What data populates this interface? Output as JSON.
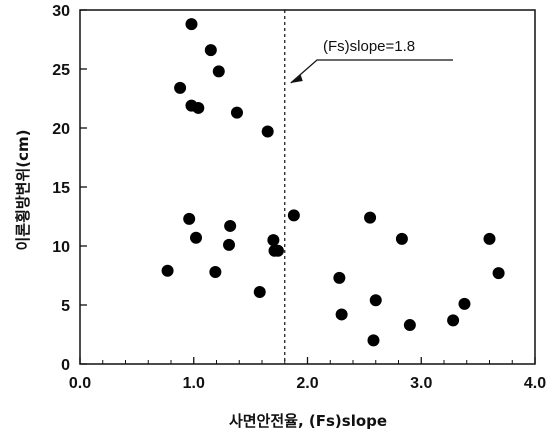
{
  "chart_data": {
    "type": "scatter",
    "xlabel": "사면안전율, (Fs)slope",
    "ylabel": "이론횡방변위(cm)",
    "xlim": [
      0,
      4
    ],
    "ylim": [
      0,
      30
    ],
    "x_ticks": [
      "0.0",
      "1.0",
      "2.0",
      "3.0",
      "4.0"
    ],
    "y_ticks": [
      "0",
      "5",
      "10",
      "15",
      "20",
      "25",
      "30"
    ],
    "grid": false,
    "reference_line": {
      "x": 1.8,
      "style": "dashed",
      "label": "(Fs)slope=1.8"
    },
    "points": [
      {
        "x": 0.98,
        "y": 28.8
      },
      {
        "x": 1.15,
        "y": 26.6
      },
      {
        "x": 1.22,
        "y": 24.8
      },
      {
        "x": 0.88,
        "y": 23.4
      },
      {
        "x": 0.98,
        "y": 21.9
      },
      {
        "x": 1.04,
        "y": 21.7
      },
      {
        "x": 1.38,
        "y": 21.3
      },
      {
        "x": 1.65,
        "y": 19.7
      },
      {
        "x": 0.96,
        "y": 12.3
      },
      {
        "x": 1.02,
        "y": 10.7
      },
      {
        "x": 1.32,
        "y": 11.7
      },
      {
        "x": 1.31,
        "y": 10.1
      },
      {
        "x": 1.7,
        "y": 10.5
      },
      {
        "x": 1.71,
        "y": 9.6
      },
      {
        "x": 1.74,
        "y": 9.6
      },
      {
        "x": 1.88,
        "y": 12.6
      },
      {
        "x": 0.77,
        "y": 7.9
      },
      {
        "x": 1.19,
        "y": 7.8
      },
      {
        "x": 1.58,
        "y": 6.1
      },
      {
        "x": 2.55,
        "y": 12.4
      },
      {
        "x": 2.83,
        "y": 10.6
      },
      {
        "x": 2.28,
        "y": 7.3
      },
      {
        "x": 2.3,
        "y": 4.2
      },
      {
        "x": 2.6,
        "y": 5.4
      },
      {
        "x": 2.58,
        "y": 2.0
      },
      {
        "x": 2.9,
        "y": 3.3
      },
      {
        "x": 3.28,
        "y": 3.7
      },
      {
        "x": 3.38,
        "y": 5.1
      },
      {
        "x": 3.6,
        "y": 10.6
      },
      {
        "x": 3.68,
        "y": 7.7
      }
    ]
  }
}
